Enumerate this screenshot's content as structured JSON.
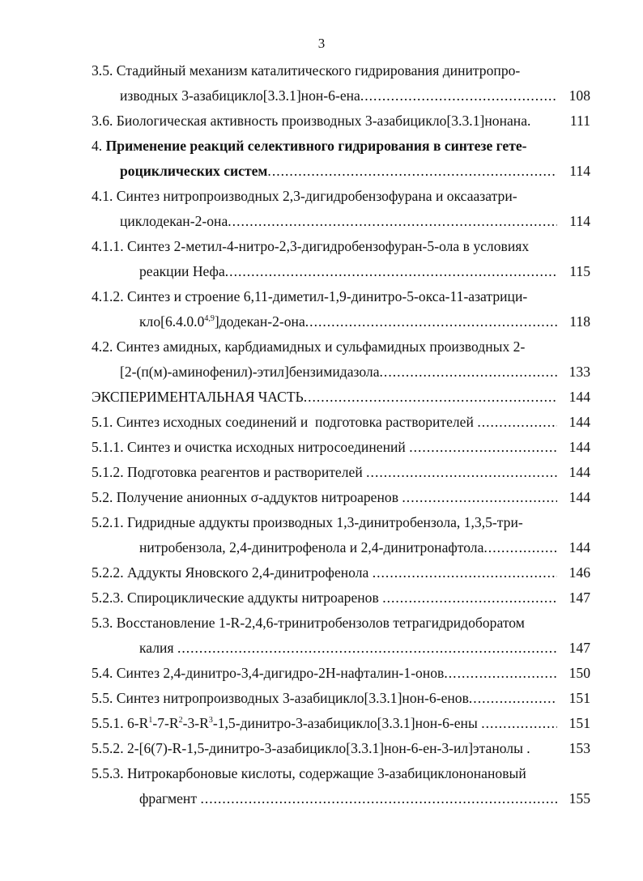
{
  "page_number": "3",
  "toc": [
    {
      "parts": [
        {
          "t": "3.5. Стадийный механизм каталитического гидрирования динитропро-"
        }
      ],
      "indent": 0
    },
    {
      "parts": [
        {
          "t": "изводных 3-азабицикло[3.3.1]нон-6-ена"
        }
      ],
      "indent": 1,
      "leader": true,
      "page": "108"
    },
    {
      "parts": [
        {
          "t": "3.6. Биологическая активность производных 3-азабицикло[3.3.1]нонана."
        }
      ],
      "indent": 0,
      "page": "111"
    },
    {
      "parts": [
        {
          "t": "4. "
        },
        {
          "t": "Применение реакций селективного гидрирования в синтезе гете-",
          "bold": true
        }
      ],
      "indent": 0
    },
    {
      "parts": [
        {
          "t": "роциклических систем",
          "bold": true
        }
      ],
      "indent": 1,
      "leader": true,
      "page": "114"
    },
    {
      "parts": [
        {
          "t": "4.1. Синтез нитропроизводных 2,3-дигидробензофурана и оксаазатри-"
        }
      ],
      "indent": 0
    },
    {
      "parts": [
        {
          "t": "циклодекан-2-она"
        }
      ],
      "indent": 1,
      "leader": true,
      "page": "114"
    },
    {
      "parts": [
        {
          "t": "4.1.1. Синтез 2-метил-4-нитро-2,3-дигидробензофуран-5-ола в условиях"
        }
      ],
      "indent": 0
    },
    {
      "parts": [
        {
          "t": "реакции Нефа"
        }
      ],
      "indent": 2,
      "leader": true,
      "page": "115"
    },
    {
      "parts": [
        {
          "t": "4.1.2. Синтез и строение 6,11-диметил-1,9-динитро-5-окса-11-азатрици-"
        }
      ],
      "indent": 0
    },
    {
      "parts": [
        {
          "t": "кло[6.4.0.0"
        },
        {
          "t": "4,9",
          "sup": true
        },
        {
          "t": "]додекан-2-она"
        }
      ],
      "indent": 2,
      "leader": true,
      "page": "118"
    },
    {
      "parts": [
        {
          "t": "4.2. Синтез амидных, карбдиамидных и сульфамидных производных 2-"
        }
      ],
      "indent": 0
    },
    {
      "parts": [
        {
          "t": "[2-(п(м)-аминофенил)-этил]бензимидазола"
        }
      ],
      "indent": 1,
      "leader": true,
      "page": "133"
    },
    {
      "parts": [
        {
          "t": "ЭКСПЕРИМЕНТАЛЬНАЯ ЧАСТЬ"
        }
      ],
      "indent": 0,
      "leader": true,
      "page": "144"
    },
    {
      "parts": [
        {
          "t": "5.1. Синтез исходных соединений и  подготовка растворителей "
        }
      ],
      "indent": 0,
      "leader": true,
      "page": "144"
    },
    {
      "parts": [
        {
          "t": "5.1.1. Синтез и очистка исходных нитросоединений "
        }
      ],
      "indent": 0,
      "leader": true,
      "page": "144"
    },
    {
      "parts": [
        {
          "t": "5.1.2. Подготовка реагентов и растворителей "
        }
      ],
      "indent": 0,
      "leader": true,
      "page": "144"
    },
    {
      "parts": [
        {
          "t": "5.2. Получение анионных σ-аддуктов нитроаренов "
        }
      ],
      "indent": 0,
      "leader": true,
      "page": "144"
    },
    {
      "parts": [
        {
          "t": "5.2.1. Гидридные аддукты производных 1,3-динитробензола, 1,3,5-три-"
        }
      ],
      "indent": 0
    },
    {
      "parts": [
        {
          "t": "нитробензола, 2,4-динитрофенола и 2,4-динитронафтола"
        }
      ],
      "indent": 2,
      "leader": true,
      "page": "144"
    },
    {
      "parts": [
        {
          "t": "5.2.2. Аддукты Яновского 2,4-динитрофенола "
        }
      ],
      "indent": 0,
      "leader": true,
      "page": "146"
    },
    {
      "parts": [
        {
          "t": "5.2.3. Спироциклические аддукты нитроаренов "
        }
      ],
      "indent": 0,
      "leader": true,
      "page": "147"
    },
    {
      "parts": [
        {
          "t": "5.3. Восстановление 1-R-2,4,6-тринитробензолов тетрагидридоборатом"
        }
      ],
      "indent": 0
    },
    {
      "parts": [
        {
          "t": "калия "
        }
      ],
      "indent": 2,
      "leader": true,
      "page": "147"
    },
    {
      "parts": [
        {
          "t": "5.4. Синтез 2,4-динитро-3,4-дигидро-2H-нафталин-1-онов"
        }
      ],
      "indent": 0,
      "leader": true,
      "page": "150"
    },
    {
      "parts": [
        {
          "t": "5.5. Синтез нитропроизводных 3-азабицикло[3.3.1]нон-6-енов"
        }
      ],
      "indent": 0,
      "leader": true,
      "page": "151"
    },
    {
      "parts": [
        {
          "t": "5.5.1. 6-R"
        },
        {
          "t": "1",
          "sup": true
        },
        {
          "t": "-7-R"
        },
        {
          "t": "2",
          "sup": true
        },
        {
          "t": "-3-R"
        },
        {
          "t": "3",
          "sup": true
        },
        {
          "t": "-1,5-динитро-3-азабицикло[3.3.1]нон-6-ены "
        }
      ],
      "indent": 0,
      "leader": true,
      "page": "151"
    },
    {
      "parts": [
        {
          "t": "5.5.2. 2-[6(7)-R-1,5-динитро-3-азабицикло[3.3.1]нон-6-ен-3-ил]этанолы ."
        }
      ],
      "indent": 0,
      "page": "153"
    },
    {
      "parts": [
        {
          "t": "5.5.3. Нитрокарбоновые кислоты, содержащие 3-азабициклононановый"
        }
      ],
      "indent": 0
    },
    {
      "parts": [
        {
          "t": "фрагмент "
        }
      ],
      "indent": 2,
      "leader": true,
      "page": "155"
    }
  ]
}
